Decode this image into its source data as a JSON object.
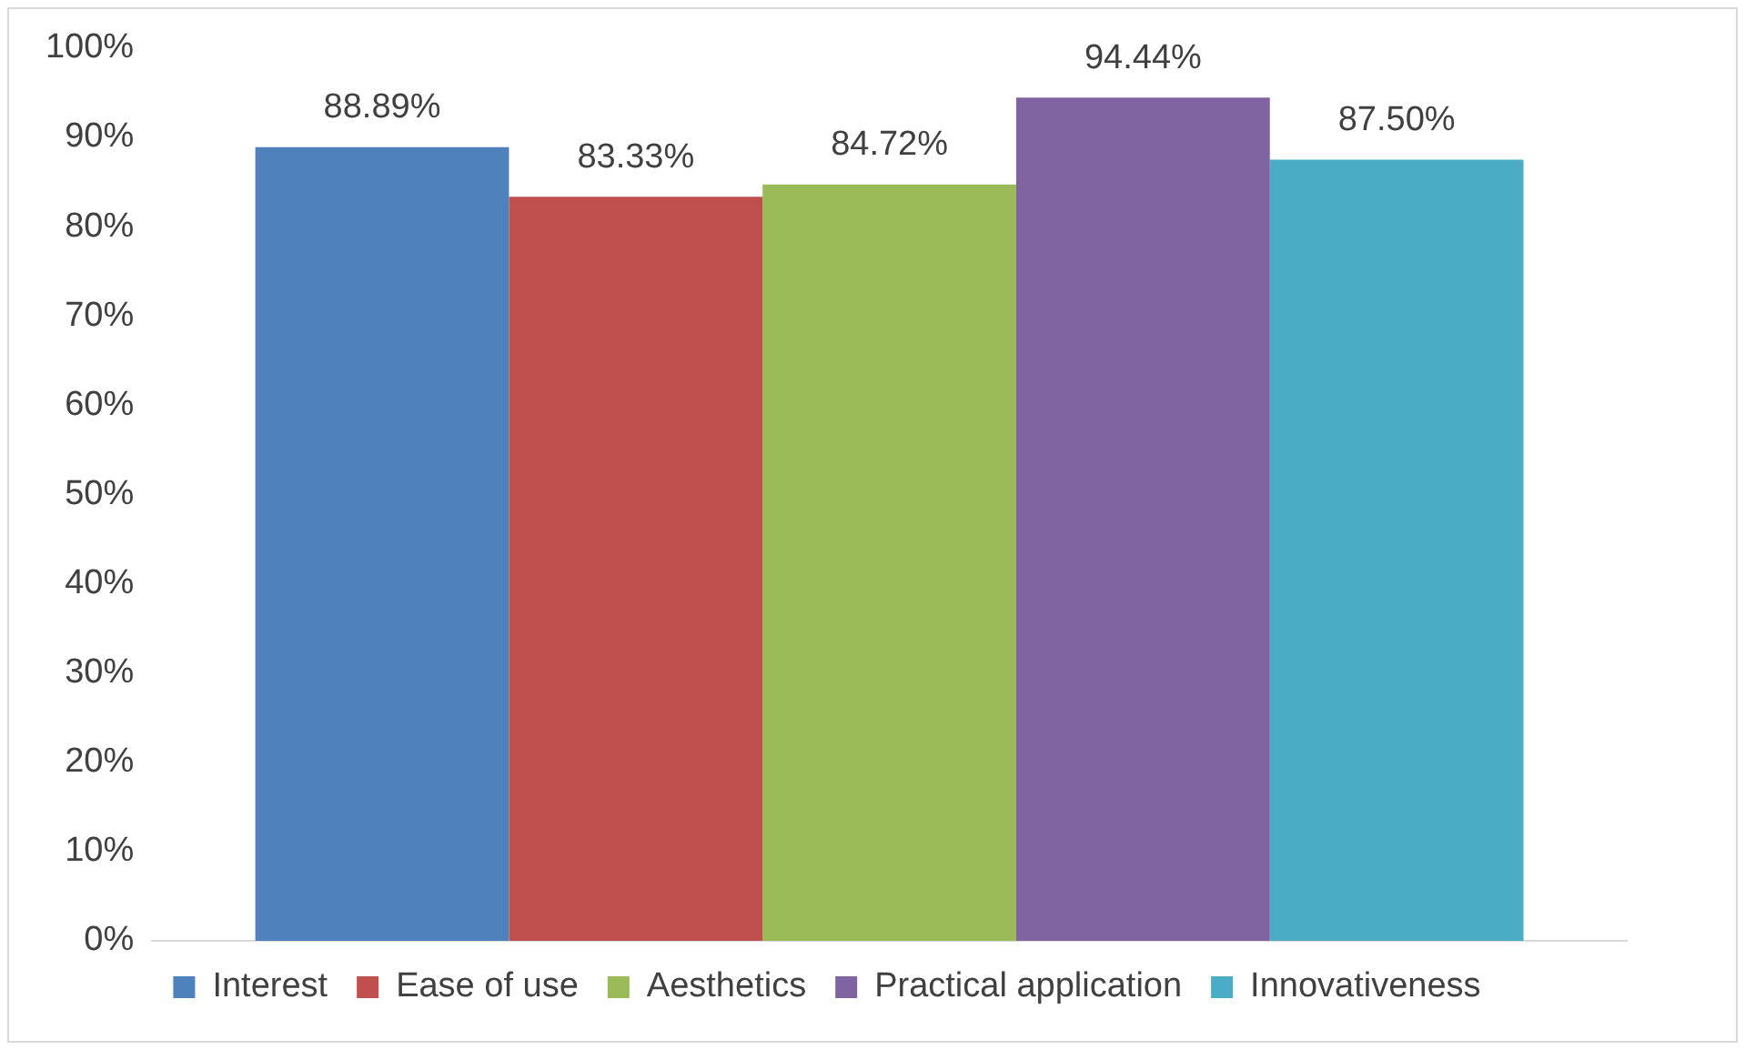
{
  "chart_data": {
    "type": "bar",
    "categories": [
      null
    ],
    "series": [
      {
        "name": "Interest",
        "color": "#4f81bd",
        "values": [
          88.89
        ],
        "value_labels": [
          "88.89%"
        ]
      },
      {
        "name": "Ease of use",
        "color": "#c0504d",
        "values": [
          83.33
        ],
        "value_labels": [
          "83.33%"
        ]
      },
      {
        "name": "Aesthetics",
        "color": "#9bbb59",
        "values": [
          84.72
        ],
        "value_labels": [
          "84.72%"
        ]
      },
      {
        "name": "Practical application",
        "color": "#8064a2",
        "values": [
          94.44
        ],
        "value_labels": [
          "94.44%"
        ]
      },
      {
        "name": "Innovativeness",
        "color": "#4bacc6",
        "values": [
          87.5
        ],
        "value_labels": [
          "87.50%"
        ]
      }
    ],
    "ylim": [
      0,
      100
    ],
    "yticks": [
      {
        "value": 0,
        "label": "0%"
      },
      {
        "value": 10,
        "label": "10%"
      },
      {
        "value": 20,
        "label": "20%"
      },
      {
        "value": 30,
        "label": "30%"
      },
      {
        "value": 40,
        "label": "40%"
      },
      {
        "value": 50,
        "label": "50%"
      },
      {
        "value": 60,
        "label": "60%"
      },
      {
        "value": 70,
        "label": "70%"
      },
      {
        "value": 80,
        "label": "80%"
      },
      {
        "value": 90,
        "label": "90%"
      },
      {
        "value": 100,
        "label": "100%"
      }
    ],
    "grid": false,
    "legend": "bottom"
  }
}
